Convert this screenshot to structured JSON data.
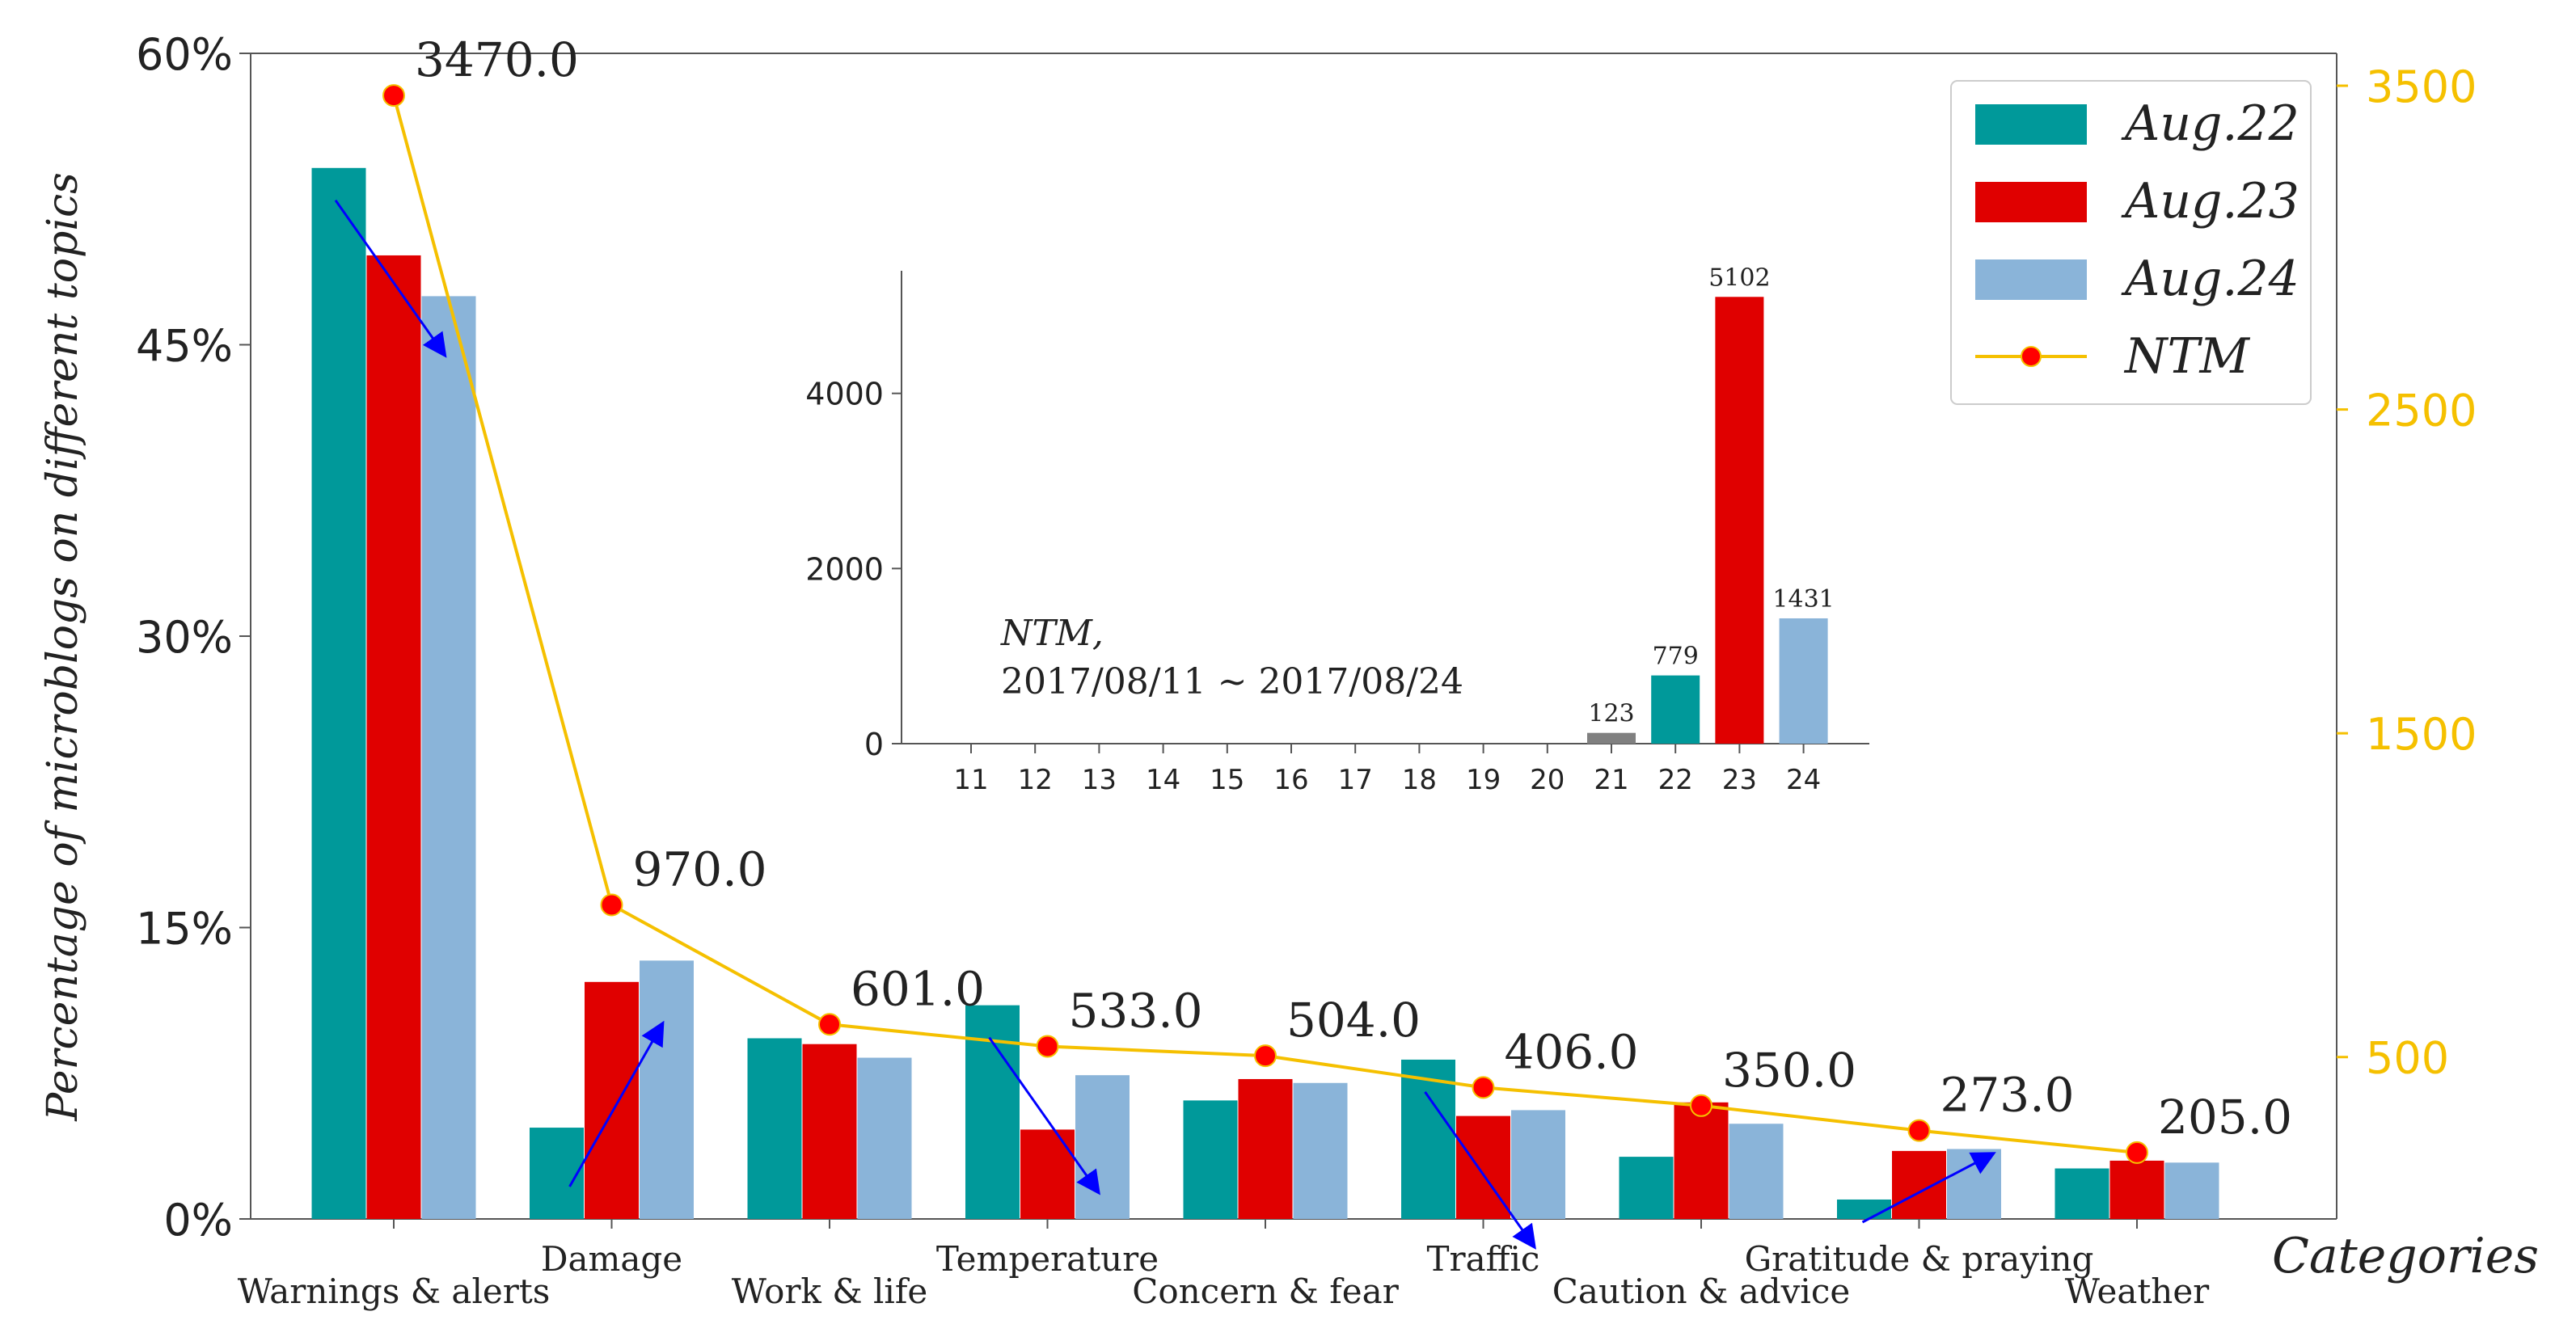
{
  "chart_data": [
    {
      "type": "bar",
      "xlabel": "Categories",
      "ylabel": "Percentage of microblogs on different topics",
      "ylim": [
        0,
        60
      ],
      "y_ticks": [
        "0%",
        "15%",
        "30%",
        "45%",
        "60%"
      ],
      "y2lim": [
        0,
        3600
      ],
      "y2_ticks": [
        "500",
        "1500",
        "2500",
        "3500"
      ],
      "categories": [
        "Warnings & alerts",
        "Damage",
        "Work & life",
        "Temperature",
        "Concern & fear",
        "Traffic",
        "Caution & advice",
        "Gratitude & praying",
        "Weather"
      ],
      "series": [
        {
          "name": "Aug.22",
          "color": "#00999a",
          "values": [
            54.1,
            4.7,
            9.3,
            11.0,
            6.1,
            8.2,
            3.2,
            1.0,
            2.6
          ]
        },
        {
          "name": "Aug.23",
          "color": "#e00000",
          "values": [
            49.6,
            12.2,
            9.0,
            4.6,
            7.2,
            5.3,
            6.0,
            3.5,
            3.0
          ]
        },
        {
          "name": "Aug.24",
          "color": "#8ab4d9",
          "values": [
            47.5,
            13.3,
            8.3,
            7.4,
            7.0,
            5.6,
            4.9,
            3.6,
            2.9
          ]
        }
      ],
      "line": {
        "name": "NTM",
        "color": "#f5c000",
        "marker_color": "#ff0000",
        "axis": "y2",
        "values": [
          3470.0,
          970.0,
          601.0,
          533.0,
          504.0,
          406.0,
          350.0,
          273.0,
          205.0
        ],
        "labels": [
          "3470.0",
          "970.0",
          "601.0",
          "533.0",
          "504.0",
          "406.0",
          "350.0",
          "273.0",
          "205.0"
        ]
      },
      "trend_arrows": {
        "color": "#0000ff",
        "items": [
          {
            "category": "Warnings & alerts",
            "direction": "down"
          },
          {
            "category": "Damage",
            "direction": "up"
          },
          {
            "category": "Temperature",
            "direction": "down"
          },
          {
            "category": "Traffic",
            "direction": "down"
          },
          {
            "category": "Gratitude & praying",
            "direction": "up"
          }
        ]
      },
      "legend": {
        "position": "top-right",
        "entries": [
          "Aug.22",
          "Aug.23",
          "Aug.24",
          "NTM"
        ]
      }
    },
    {
      "type": "bar",
      "title": "NTM,",
      "subtitle": "2017/08/11 ∼ 2017/08/24",
      "categories": [
        "11",
        "12",
        "13",
        "14",
        "15",
        "16",
        "17",
        "18",
        "19",
        "20",
        "21",
        "22",
        "23",
        "24"
      ],
      "values": [
        0,
        0,
        0,
        0,
        0,
        0,
        0,
        0,
        0,
        0,
        123,
        779,
        5102,
        1431
      ],
      "value_labels": [
        "",
        "",
        "",
        "",
        "",
        "",
        "",
        "",
        "",
        "",
        "123",
        "779",
        "5102",
        "1431"
      ],
      "colors": [
        "#808080",
        "#808080",
        "#808080",
        "#808080",
        "#808080",
        "#808080",
        "#808080",
        "#808080",
        "#808080",
        "#808080",
        "#808080",
        "#00999a",
        "#e00000",
        "#8ab4d9"
      ],
      "ylim": [
        0,
        5400
      ],
      "y_ticks": [
        "0",
        "2000",
        "4000"
      ]
    }
  ]
}
